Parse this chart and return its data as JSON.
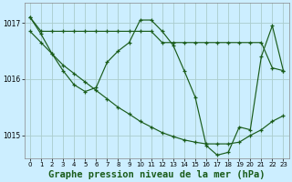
{
  "bg_color": "#cceeff",
  "grid_color": "#aacccc",
  "line_color": "#1a5c1a",
  "title": "Graphe pression niveau de la mer (hPa)",
  "title_fontsize": 7.5,
  "xlim": [
    -0.5,
    23.5
  ],
  "ylim": [
    1014.6,
    1017.35
  ],
  "yticks": [
    1015,
    1016,
    1017
  ],
  "xticks": [
    0,
    1,
    2,
    3,
    4,
    5,
    6,
    7,
    8,
    9,
    10,
    11,
    12,
    13,
    14,
    15,
    16,
    17,
    18,
    19,
    20,
    21,
    22,
    23
  ],
  "line1_x": [
    0,
    1,
    2,
    3,
    4,
    5,
    6,
    7,
    8,
    9,
    10,
    11,
    12,
    13,
    14,
    15,
    16,
    17,
    18,
    19,
    20,
    21,
    22,
    23
  ],
  "line1_y": [
    1017.1,
    1016.85,
    1016.85,
    1016.85,
    1016.85,
    1016.85,
    1016.85,
    1016.85,
    1016.85,
    1016.85,
    1016.85,
    1016.85,
    1016.65,
    1016.65,
    1016.65,
    1016.65,
    1016.65,
    1016.65,
    1016.65,
    1016.65,
    1016.65,
    1016.65,
    1016.2,
    1016.15
  ],
  "line2_x": [
    0,
    1,
    2,
    3,
    4,
    5,
    6,
    7,
    8,
    9,
    10,
    11,
    12,
    13,
    14,
    15,
    16,
    17,
    18,
    19,
    20,
    21,
    22,
    23
  ],
  "line2_y": [
    1016.85,
    1016.65,
    1016.45,
    1016.25,
    1016.1,
    1015.95,
    1015.8,
    1015.65,
    1015.5,
    1015.38,
    1015.25,
    1015.15,
    1015.05,
    1014.98,
    1014.92,
    1014.88,
    1014.85,
    1014.85,
    1014.85,
    1014.88,
    1015.0,
    1015.1,
    1015.25,
    1015.35
  ],
  "line3_x": [
    0,
    1,
    2,
    3,
    4,
    5,
    6,
    7,
    8,
    9,
    10,
    11,
    12,
    13,
    14,
    15,
    16,
    17,
    18,
    19,
    20,
    21,
    22,
    23
  ],
  "line3_y": [
    1017.1,
    1016.8,
    1016.45,
    1016.15,
    1015.9,
    1015.78,
    1015.85,
    1016.3,
    1016.5,
    1016.65,
    1017.05,
    1017.05,
    1016.85,
    1016.6,
    1016.15,
    1015.68,
    1014.82,
    1014.65,
    1014.7,
    1015.15,
    1015.1,
    1016.4,
    1016.95,
    1016.15
  ]
}
